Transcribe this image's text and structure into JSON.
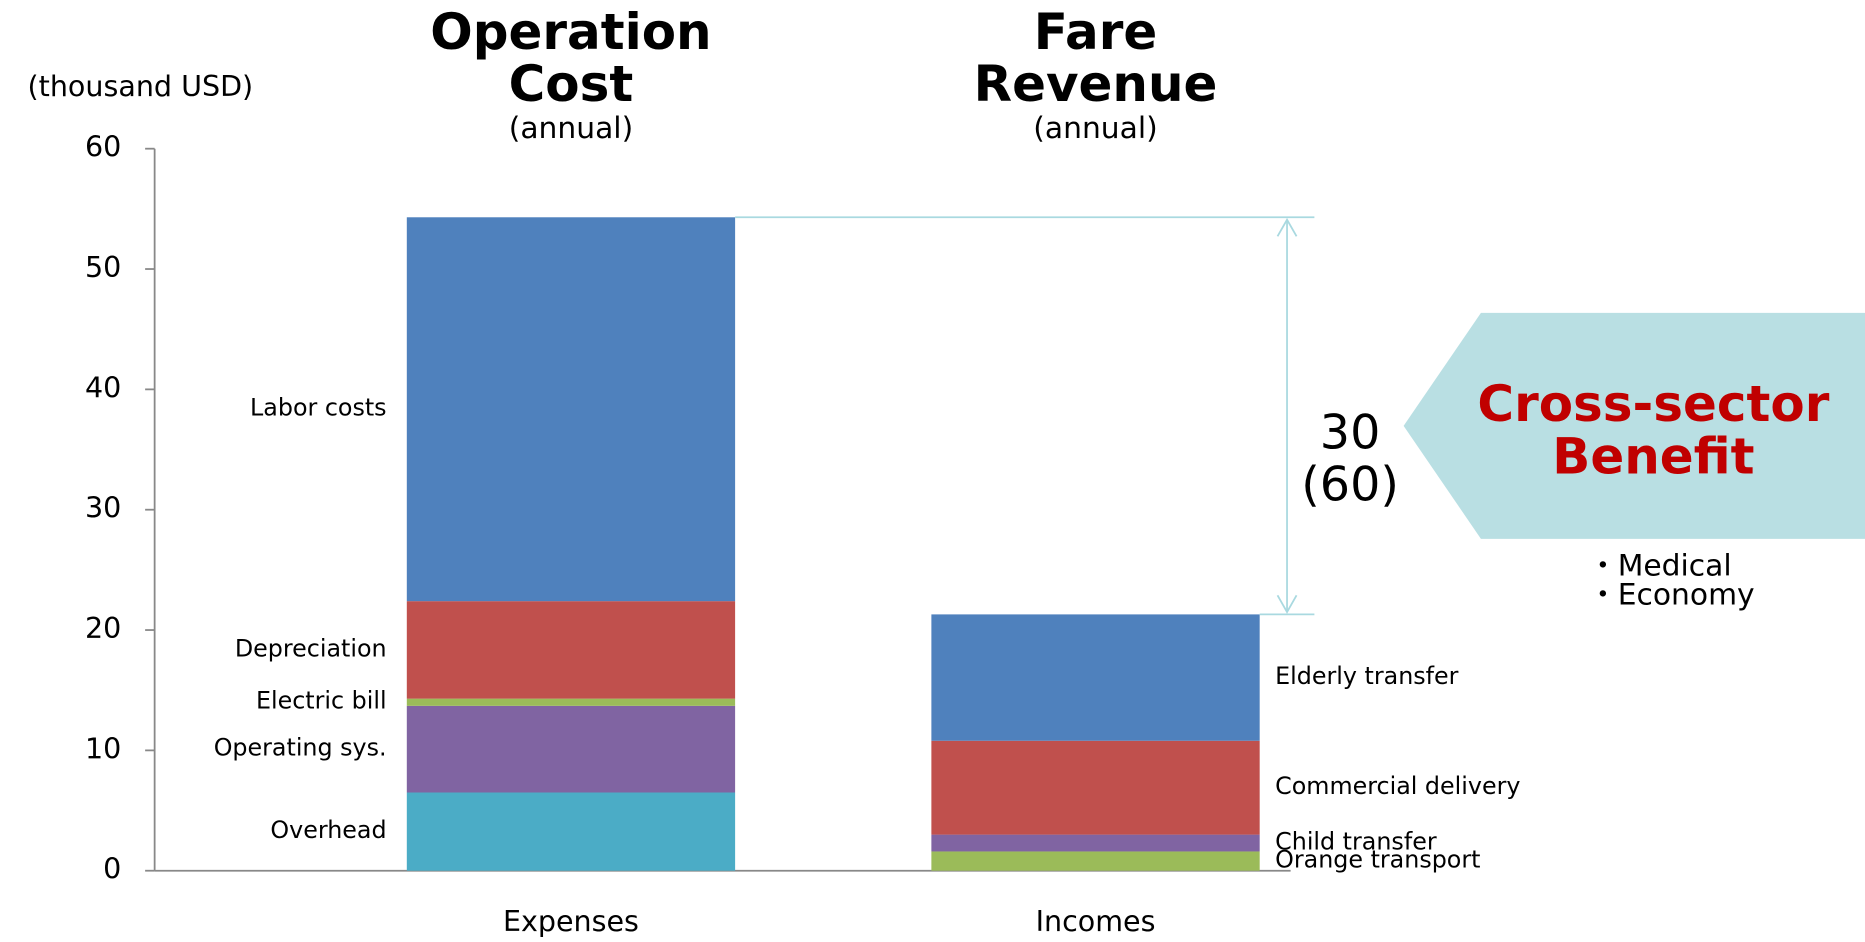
{
  "chart_data": {
    "type": "stacked_bar",
    "y_label": "(thousand USD)",
    "ylim": [
      0,
      60
    ],
    "yticks": [
      0,
      10,
      20,
      30,
      40,
      50,
      60
    ],
    "stacks": [
      {
        "category": "Expenses",
        "title": "Operation Cost",
        "subtitle": "(annual)",
        "segments": [
          {
            "name": "Overhead",
            "color": "#4bacc6",
            "value": 6.5
          },
          {
            "name": "Operating sys.",
            "color": "#8064a2",
            "value": 7.2
          },
          {
            "name": "Electric bill",
            "color": "#9bbb59",
            "value": 0.6
          },
          {
            "name": "Depreciation",
            "color": "#c0504d",
            "value": 8.1
          },
          {
            "name": "Labor costs",
            "color": "#4f81bd",
            "value": 31.9
          }
        ]
      },
      {
        "category": "Incomes",
        "title": "Fare Revenue",
        "subtitle": "(annual)",
        "segments": [
          {
            "name": "Orange transport",
            "color": "#9bbb59",
            "value": 1.6
          },
          {
            "name": "Child transfer",
            "color": "#8064a2",
            "value": 1.4
          },
          {
            "name": "Commercial delivery",
            "color": "#c0504d",
            "value": 7.8
          },
          {
            "name": "Elderly transfer",
            "color": "#4f81bd",
            "value": 10.5
          }
        ]
      }
    ],
    "gap_label": "30",
    "gap_label_alt": "(60)",
    "benefit": "Cross-sector Benefit",
    "benefit_items": [
      "・Medical",
      "・Economy"
    ]
  }
}
